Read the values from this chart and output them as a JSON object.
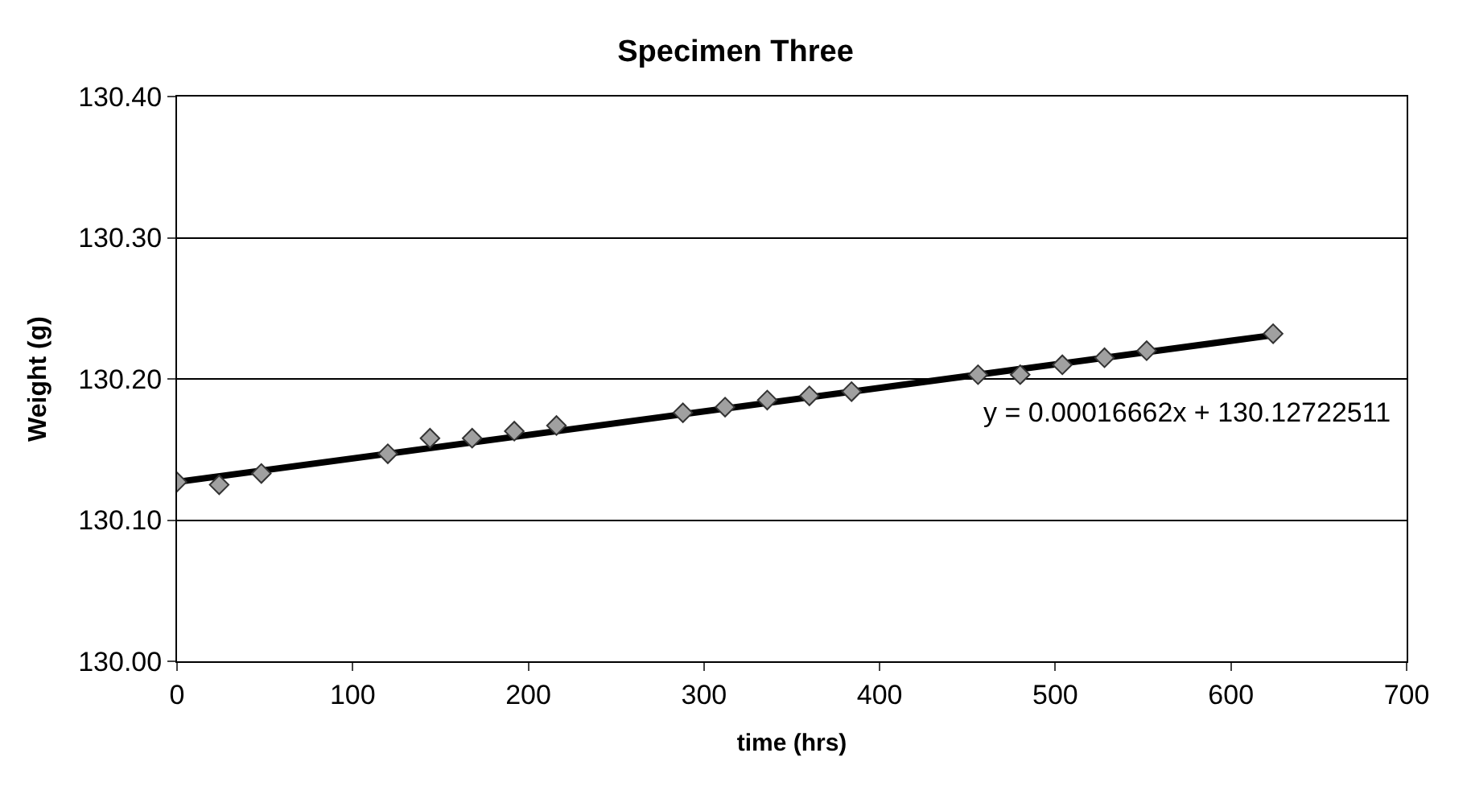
{
  "chart_data": {
    "type": "scatter",
    "title": "Specimen Three",
    "xlabel": "time (hrs)",
    "ylabel": "Weight (g)",
    "series": [
      {
        "color": "#a0a0a0",
        "marker": "diamond",
        "x": [
          0,
          24,
          48,
          120,
          144,
          168,
          192,
          216,
          288,
          312,
          336,
          360,
          384,
          456,
          480,
          504,
          528,
          552,
          624
        ],
        "values": [
          130.127,
          130.125,
          130.133,
          130.147,
          130.158,
          130.158,
          130.163,
          130.167,
          130.176,
          130.18,
          130.185,
          130.188,
          130.191,
          130.203,
          130.203,
          130.21,
          130.215,
          130.22,
          130.232
        ]
      },
      {
        "type": "line",
        "color": "#000000",
        "marker": "none",
        "x": [
          0,
          624
        ],
        "values": [
          130.127,
          130.231
        ]
      }
    ],
    "annotations": [
      "y = 0.00016662x + 130.12722511"
    ],
    "xlim": [
      0,
      700
    ],
    "xticks": [
      0,
      100,
      200,
      300,
      400,
      500,
      600,
      700
    ],
    "ylim": [
      130.0,
      130.4
    ],
    "yticks": [
      {
        "value": 130.0,
        "label": "130.00"
      },
      {
        "value": 130.1,
        "label": "130.10"
      },
      {
        "value": 130.2,
        "label": "130.20"
      },
      {
        "value": 130.3,
        "label": "130.30"
      },
      {
        "value": 130.4,
        "label": "130.40"
      }
    ],
    "grid": "y"
  }
}
